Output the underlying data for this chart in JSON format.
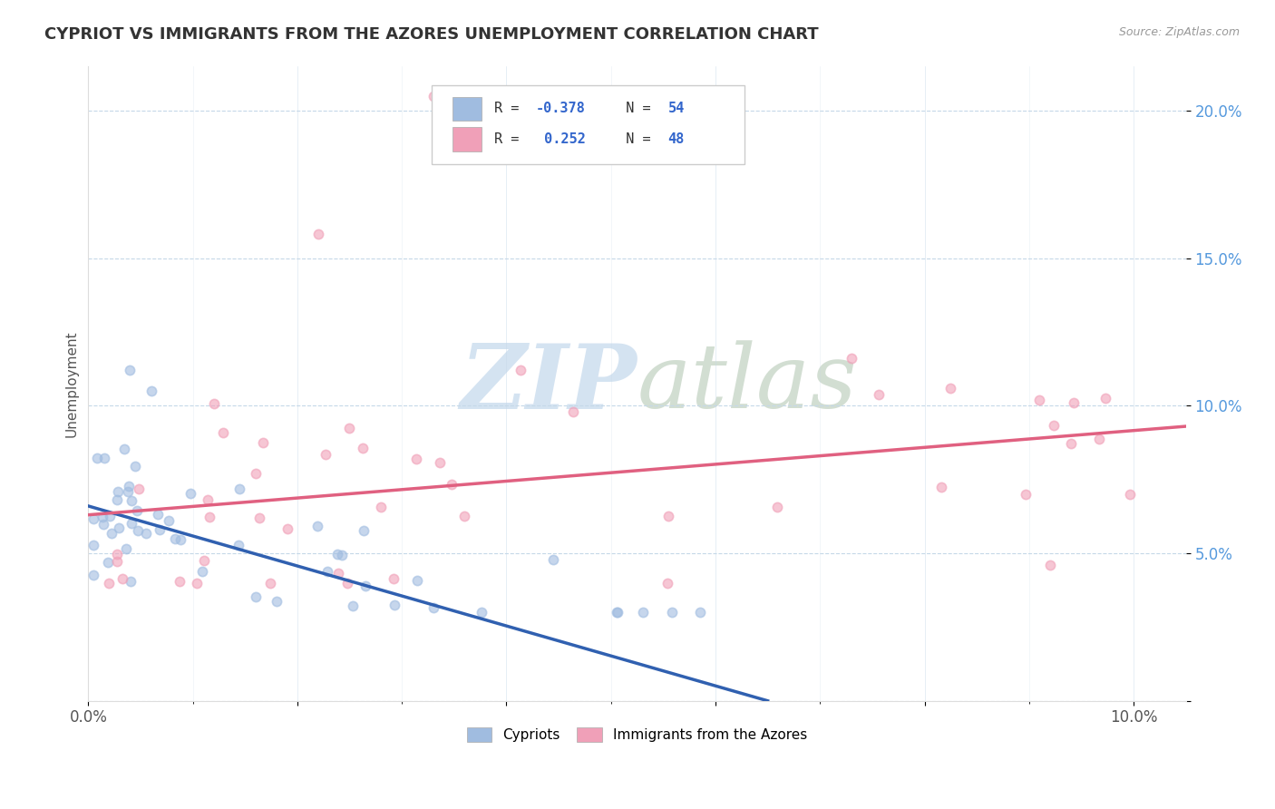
{
  "title": "CYPRIOT VS IMMIGRANTS FROM THE AZORES UNEMPLOYMENT CORRELATION CHART",
  "source_text": "Source: ZipAtlas.com",
  "ylabel": "Unemployment",
  "xlim": [
    0.0,
    0.105
  ],
  "ylim": [
    0.0,
    0.215
  ],
  "x_tick_positions": [
    0.0,
    0.02,
    0.04,
    0.06,
    0.08,
    0.1
  ],
  "x_tick_labels": [
    "0.0%",
    "",
    "",
    "",
    "",
    "10.0%"
  ],
  "y_tick_positions": [
    0.0,
    0.05,
    0.1,
    0.15,
    0.2
  ],
  "y_tick_labels": [
    "",
    "5.0%",
    "10.0%",
    "15.0%",
    "20.0%"
  ],
  "cypriot_color": "#a0bce0",
  "azores_color": "#f0a0b8",
  "cypriot_line_color": "#3060b0",
  "azores_line_color": "#e06080",
  "legend_label1": "Cypriots",
  "legend_label2": "Immigrants from the Azores",
  "watermark_text": "ZIPatlas",
  "cypriot_line_x0": 0.0,
  "cypriot_line_y0": 0.066,
  "cypriot_line_x1": 0.065,
  "cypriot_line_y1": 0.0,
  "azores_line_x0": 0.0,
  "azores_line_y0": 0.063,
  "azores_line_x1": 0.105,
  "azores_line_y1": 0.093,
  "marker_size": 55,
  "marker_alpha": 0.6
}
